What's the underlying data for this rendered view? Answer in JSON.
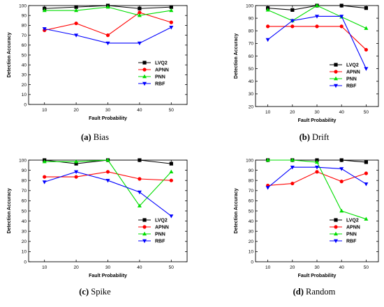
{
  "colors": {
    "LVQ2": "#000000",
    "APNN": "#ff0000",
    "PNN": "#00dd00",
    "RBF": "#0000ff"
  },
  "markers": {
    "LVQ2": "square",
    "APNN": "circle",
    "PNN": "triangle-up",
    "RBF": "triangle-down"
  },
  "chart_data": [
    {
      "type": "line",
      "caption_letter": "(a)",
      "caption_text": "Bias",
      "xlabel": "Fault Probability",
      "ylabel": "Detection Accuracy",
      "x": [
        10,
        20,
        30,
        40,
        50
      ],
      "xlim": [
        5,
        55
      ],
      "ylim": [
        0,
        100
      ],
      "yticks": [
        0,
        10,
        20,
        30,
        40,
        50,
        60,
        70,
        80,
        90,
        100
      ],
      "grid": false,
      "legend_position": "lower-right",
      "series": [
        {
          "name": "LVQ2",
          "values": [
            97,
            98.5,
            100,
            97,
            98.5
          ]
        },
        {
          "name": "APNN",
          "values": [
            75,
            82,
            70,
            93,
            83
          ]
        },
        {
          "name": "PNN",
          "values": [
            95,
            95,
            98.5,
            90,
            95
          ]
        },
        {
          "name": "RBF",
          "values": [
            76.5,
            70,
            62,
            62,
            78
          ]
        }
      ]
    },
    {
      "type": "line",
      "caption_letter": "(b)",
      "caption_text": "Drift",
      "xlabel": "Fault Probability",
      "ylabel": "Detection Accuracy",
      "x": [
        10,
        20,
        30,
        40,
        50
      ],
      "xlim": [
        5,
        55
      ],
      "ylim": [
        20,
        100
      ],
      "yticks": [
        20,
        30,
        40,
        50,
        60,
        70,
        80,
        90,
        100
      ],
      "grid": false,
      "legend_position": "lower-right",
      "series": [
        {
          "name": "LVQ2",
          "values": [
            98,
            96.5,
            100,
            100,
            98
          ]
        },
        {
          "name": "APNN",
          "values": [
            83.5,
            83.5,
            83.5,
            83.5,
            65
          ]
        },
        {
          "name": "PNN",
          "values": [
            96.5,
            88,
            100,
            91,
            82
          ]
        },
        {
          "name": "RBF",
          "values": [
            73,
            88,
            91.5,
            91.5,
            50
          ]
        }
      ]
    },
    {
      "type": "line",
      "caption_letter": "(c)",
      "caption_text": "Spike",
      "xlabel": "Fault Probability",
      "ylabel": "Detection Accuracy",
      "x": [
        10,
        20,
        30,
        40,
        50
      ],
      "xlim": [
        5,
        55
      ],
      "ylim": [
        0,
        100
      ],
      "yticks": [
        0,
        10,
        20,
        30,
        40,
        50,
        60,
        70,
        80,
        90,
        100
      ],
      "grid": false,
      "legend_position": "lower-right",
      "series": [
        {
          "name": "LVQ2",
          "values": [
            100,
            96.5,
            100,
            100,
            96.5
          ]
        },
        {
          "name": "APNN",
          "values": [
            83.5,
            83.5,
            88.5,
            81.5,
            80
          ]
        },
        {
          "name": "PNN",
          "values": [
            98.5,
            98.5,
            100,
            55,
            88.5
          ]
        },
        {
          "name": "RBF",
          "values": [
            78.5,
            88.5,
            80,
            68.5,
            45
          ]
        }
      ]
    },
    {
      "type": "line",
      "caption_letter": "(d)",
      "caption_text": "Random",
      "xlabel": "Fault Probability",
      "ylabel": "Detection Accuracy",
      "x": [
        10,
        20,
        30,
        40,
        50
      ],
      "xlim": [
        5,
        55
      ],
      "ylim": [
        0,
        100
      ],
      "yticks": [
        0,
        10,
        20,
        30,
        40,
        50,
        60,
        70,
        80,
        90,
        100
      ],
      "grid": false,
      "legend_position": "lower-right",
      "series": [
        {
          "name": "LVQ2",
          "values": [
            100,
            100,
            100,
            100,
            98
          ]
        },
        {
          "name": "APNN",
          "values": [
            75,
            77,
            88.5,
            79,
            87
          ]
        },
        {
          "name": "PNN",
          "values": [
            100,
            100,
            98,
            50,
            42
          ]
        },
        {
          "name": "RBF",
          "values": [
            73,
            93,
            93,
            91.5,
            76.5
          ]
        }
      ]
    }
  ]
}
